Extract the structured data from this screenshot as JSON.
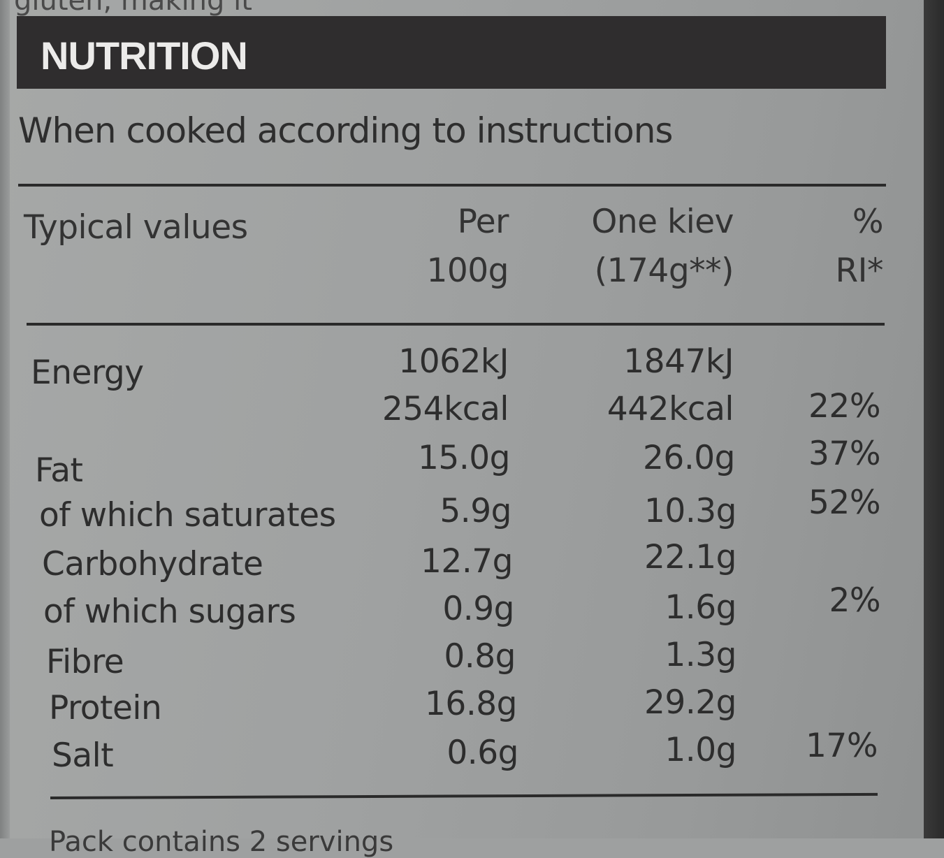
{
  "top_cut_text": "gluten, making it",
  "banner": {
    "title": "NUTRITION"
  },
  "subtitle": "When cooked according to instructions",
  "header": {
    "col0": "Typical values",
    "col1_line1": "Per",
    "col1_line2": "100g",
    "col2_line1": "One kiev",
    "col2_line2": "(174g**)",
    "col3_line1": "%",
    "col3_line2": "RI*"
  },
  "rows": [
    {
      "label": "Energy",
      "per100": "1062kJ",
      "kiev": "1847kJ",
      "ri": ""
    },
    {
      "label": "",
      "per100": "254kcal",
      "kiev": "442kcal",
      "ri": "22%"
    },
    {
      "label": "Fat",
      "per100": "15.0g",
      "kiev": "26.0g",
      "ri": "37%"
    },
    {
      "label": "of which saturates",
      "per100": "5.9g",
      "kiev": "10.3g",
      "ri": "52%"
    },
    {
      "label": "Carbohydrate",
      "per100": "12.7g",
      "kiev": "22.1g",
      "ri": ""
    },
    {
      "label": "of which sugars",
      "per100": "0.9g",
      "kiev": "1.6g",
      "ri": "2%"
    },
    {
      "label": "Fibre",
      "per100": "0.8g",
      "kiev": "1.3g",
      "ri": ""
    },
    {
      "label": "Protein",
      "per100": "16.8g",
      "kiev": "29.2g",
      "ri": ""
    },
    {
      "label": "Salt",
      "per100": "0.6g",
      "kiev": "1.0g",
      "ri": "17%"
    }
  ],
  "bottom_cut_text": "Pack contains 2 servings"
}
